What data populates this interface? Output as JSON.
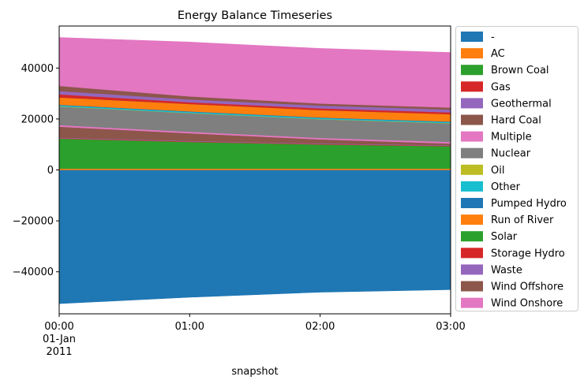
{
  "chart_data": {
    "type": "area",
    "stacked": true,
    "title": "Energy Balance Timeseries",
    "xlabel": "snapshot",
    "ylabel": "",
    "x": [
      "00:00",
      "01:00",
      "02:00",
      "03:00"
    ],
    "x_tick_labels": [
      {
        "lines": [
          "00:00",
          "01-Jan",
          "2011"
        ]
      },
      {
        "lines": [
          "01:00"
        ]
      },
      {
        "lines": [
          "02:00"
        ]
      },
      {
        "lines": [
          "03:00"
        ]
      }
    ],
    "ylim": [
      -56500,
      56500
    ],
    "y_ticks": [
      -40000,
      -20000,
      0,
      20000,
      40000
    ],
    "y_tick_labels": [
      "−40000",
      "−20000",
      "0",
      "20000",
      "40000"
    ],
    "legend_position": "right, outside",
    "negative_series": [
      {
        "name": "-",
        "color": "#1f77b4",
        "values": [
          -52500,
          -50000,
          -48000,
          -47000
        ]
      }
    ],
    "series": [
      {
        "name": "-",
        "color": "#1f77b4",
        "values": [
          0,
          0,
          0,
          0
        ]
      },
      {
        "name": "AC",
        "color": "#ff7f0e",
        "values": [
          500,
          500,
          500,
          500
        ]
      },
      {
        "name": "Brown Coal",
        "color": "#2ca02c",
        "values": [
          11800,
          10500,
          9500,
          8800
        ]
      },
      {
        "name": "Gas",
        "color": "#d62728",
        "values": [
          200,
          200,
          200,
          200
        ]
      },
      {
        "name": "Geothermal",
        "color": "#9467bd",
        "values": [
          200,
          200,
          200,
          200
        ]
      },
      {
        "name": "Hard Coal",
        "color": "#8c564b",
        "values": [
          4300,
          3000,
          1600,
          700
        ]
      },
      {
        "name": "Multiple",
        "color": "#e377c2",
        "values": [
          600,
          600,
          600,
          600
        ]
      },
      {
        "name": "Nuclear",
        "color": "#7f7f7f",
        "values": [
          7300,
          7300,
          7300,
          7300
        ]
      },
      {
        "name": "Oil",
        "color": "#bcbd22",
        "values": [
          100,
          100,
          100,
          100
        ]
      },
      {
        "name": "Other",
        "color": "#17becf",
        "values": [
          400,
          400,
          400,
          400
        ]
      },
      {
        "name": "Pumped Hydro",
        "color": "#1f77b4",
        "values": [
          200,
          200,
          200,
          200
        ]
      },
      {
        "name": "Run of River",
        "color": "#ff7f0e",
        "values": [
          2900,
          2900,
          2900,
          2900
        ]
      },
      {
        "name": "Solar",
        "color": "#2ca02c",
        "values": [
          0,
          0,
          0,
          0
        ]
      },
      {
        "name": "Storage Hydro",
        "color": "#d62728",
        "values": [
          1200,
          700,
          700,
          700
        ]
      },
      {
        "name": "Waste",
        "color": "#9467bd",
        "values": [
          1300,
          1100,
          1100,
          1100
        ]
      },
      {
        "name": "Wind Offshore",
        "color": "#8c564b",
        "values": [
          2000,
          1200,
          800,
          800
        ]
      },
      {
        "name": "Wind Onshore",
        "color": "#e377c2",
        "values": [
          19000,
          21300,
          21600,
          21600
        ]
      }
    ]
  }
}
